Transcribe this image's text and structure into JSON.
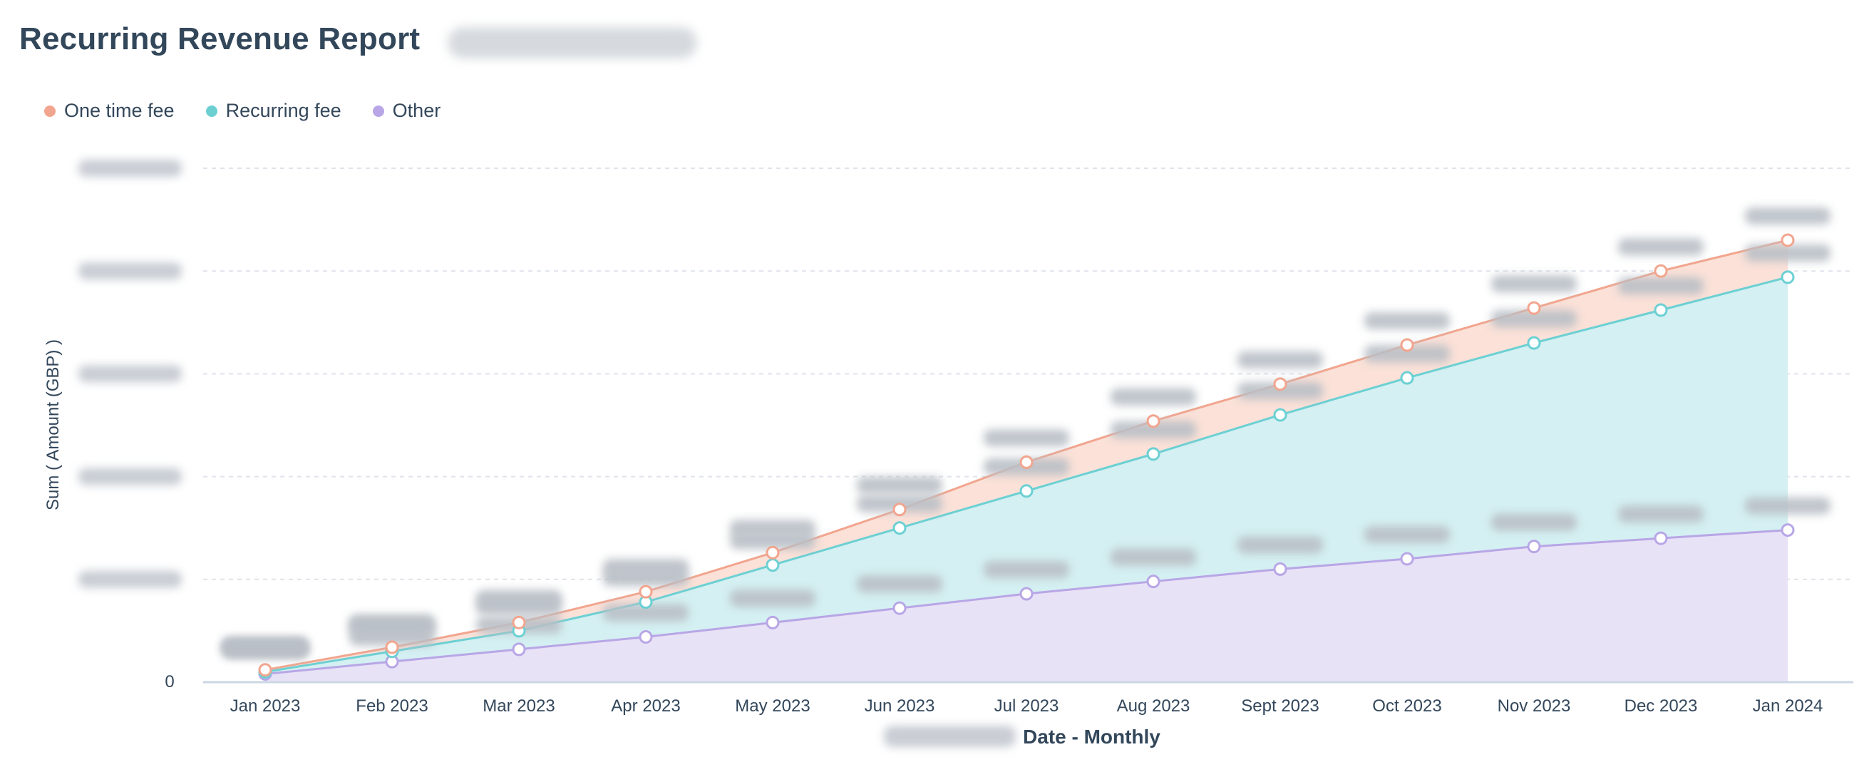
{
  "header": {
    "title": "Recurring Revenue Report"
  },
  "legend": [
    {
      "label": "One time fee",
      "color": "#f2a58e"
    },
    {
      "label": "Recurring fee",
      "color": "#6cd0d3"
    },
    {
      "label": "Other",
      "color": "#b8a6e6"
    }
  ],
  "chart_data": {
    "type": "area",
    "stacked": true,
    "x": [
      "Jan 2023",
      "Feb 2023",
      "Mar 2023",
      "Apr 2023",
      "May 2023",
      "Jun 2023",
      "Jul 2023",
      "Aug 2023",
      "Sept 2023",
      "Oct 2023",
      "Nov 2023",
      "Dec 2023",
      "Jan 2024"
    ],
    "xlabel": "Date - Monthly",
    "ylabel": "Sum ( Amount (GBP) )",
    "y_tick_visible": "0",
    "ylim": [
      0,
      250
    ],
    "grid": true,
    "legend_position": "top-left",
    "values_redacted": true,
    "series": [
      {
        "name": "Other",
        "color": "#b8a6e6",
        "fill": "#e8e2f6",
        "cumulative": [
          4,
          10,
          16,
          22,
          29,
          36,
          43,
          49,
          55,
          60,
          66,
          70,
          74
        ]
      },
      {
        "name": "Recurring fee",
        "color": "#6cd0d3",
        "fill": "#d4f0f2",
        "cumulative": [
          5,
          15,
          25,
          39,
          57,
          75,
          93,
          111,
          130,
          148,
          165,
          181,
          197
        ]
      },
      {
        "name": "One time fee",
        "color": "#f2a58e",
        "fill": "#fbe1d8",
        "cumulative": [
          6,
          17,
          29,
          44,
          63,
          84,
          107,
          127,
          145,
          164,
          182,
          200,
          215
        ]
      }
    ]
  }
}
